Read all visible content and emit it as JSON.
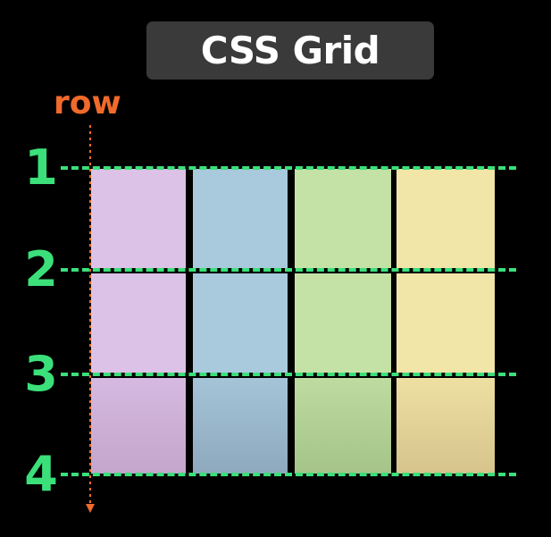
{
  "title": "CSS Grid",
  "axis_label": "row",
  "row_lines": [
    {
      "label": "1"
    },
    {
      "label": "2"
    },
    {
      "label": "3"
    },
    {
      "label": "4"
    }
  ],
  "colors": {
    "background": "#000000",
    "badge": "#3a3a3a",
    "line": "#3be07a",
    "axis": "#f06a2c",
    "col1": "#dcc2e6",
    "col2": "#a9c9dc",
    "col3": "#c4e1a6",
    "col4": "#f2e5a8"
  },
  "grid": {
    "columns": 4,
    "rows": 3
  }
}
